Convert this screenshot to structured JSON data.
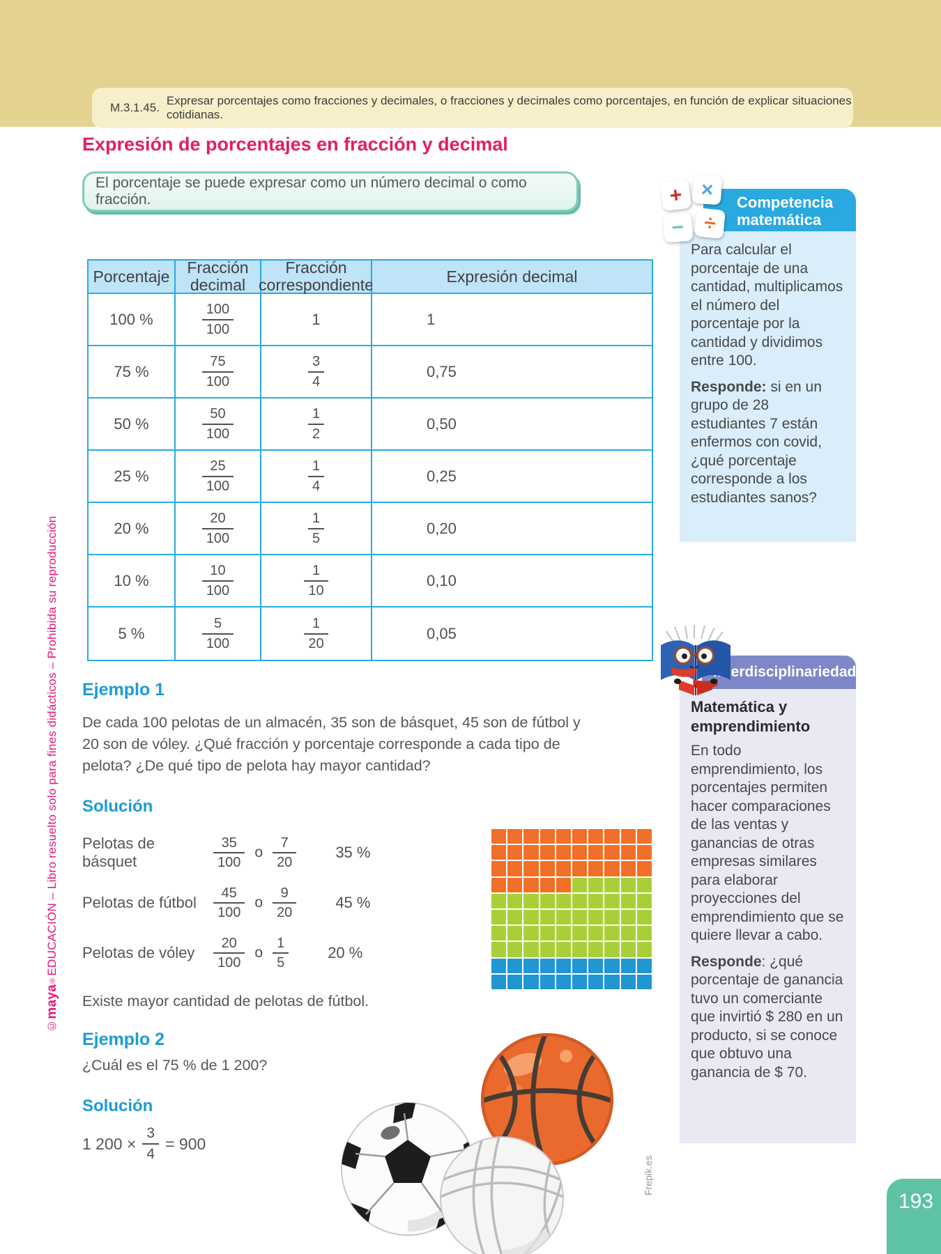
{
  "band": {
    "code": "M.3.1.45.",
    "text": "Expresar porcentajes como fracciones y decimales, o fracciones y decimales como porcentajes, en función de explicar situaciones cotidianas."
  },
  "title": "Expresión de porcentajes en fracción y decimal",
  "definition_box": "El porcentaje se puede expresar como un número decimal o como fracción.",
  "table": {
    "headers": [
      "Porcentaje",
      "Fracción decimal",
      "Fracción correspondiente",
      "Expresión decimal"
    ],
    "rows": [
      {
        "pct": "100 %",
        "fd_num": "100",
        "fd_den": "100",
        "eq": "1",
        "dec": "1"
      },
      {
        "pct": "75 %",
        "fd_num": "75",
        "fd_den": "100",
        "eq_num": "3",
        "eq_den": "4",
        "dec": "0,75"
      },
      {
        "pct": "50 %",
        "fd_num": "50",
        "fd_den": "100",
        "eq_num": "1",
        "eq_den": "2",
        "dec": "0,50"
      },
      {
        "pct": "25 %",
        "fd_num": "25",
        "fd_den": "100",
        "eq_num": "1",
        "eq_den": "4",
        "dec": "0,25"
      },
      {
        "pct": "20 %",
        "fd_num": "20",
        "fd_den": "100",
        "eq_num": "1",
        "eq_den": "5",
        "dec": "0,20"
      },
      {
        "pct": "10 %",
        "fd_num": "10",
        "fd_den": "100",
        "eq_num": "1",
        "eq_den": "10",
        "dec": "0,10"
      },
      {
        "pct": "5 %",
        "fd_num": "5",
        "fd_den": "100",
        "eq_num": "1",
        "eq_den": "20",
        "dec": "0,05"
      }
    ]
  },
  "example1": {
    "heading": "Ejemplo 1",
    "body": "De cada 100 pelotas de un almacén, 35 son de básquet, 45 son de fútbol y 20 son de vóley. ¿Qué fracción y porcentaje corresponde a cada tipo de pelota? ¿De qué tipo de pelota hay mayor cantidad?",
    "solution_label": "Solución",
    "rows": [
      {
        "label": "Pelotas de básquet",
        "f1_num": "35",
        "f1_den": "100",
        "conj": "o",
        "f2_num": "7",
        "f2_den": "20",
        "pct": "35 %"
      },
      {
        "label": "Pelotas de fútbol",
        "f1_num": "45",
        "f1_den": "100",
        "conj": "o",
        "f2_num": "9",
        "f2_den": "20",
        "pct": "45 %"
      },
      {
        "label": "Pelotas de vóley",
        "f1_num": "20",
        "f1_den": "100",
        "conj": "o",
        "f2_num": "1",
        "f2_den": "5",
        "pct": "20 %"
      }
    ],
    "conclusion": "Existe mayor cantidad de pelotas de fútbol."
  },
  "example2": {
    "heading": "Ejemplo 2",
    "question": "¿Cuál es el 75 % de 1 200?",
    "solution_label": "Solución",
    "formula": {
      "lead": "1 200 ×",
      "num": "3",
      "den": "4",
      "tail": "= 900"
    }
  },
  "grid": {
    "columns": 10,
    "segments": [
      {
        "name": "basquet",
        "color": "#f16f26",
        "count": 35
      },
      {
        "name": "futbol",
        "color": "#a9cf38",
        "count": 45
      },
      {
        "name": "voley",
        "color": "#2096d3",
        "count": 20
      }
    ]
  },
  "competencia": {
    "title_line1": "Competencia",
    "title_line2": "matemática",
    "icon_plus": "+",
    "icon_times": "×",
    "icon_minus": "−",
    "icon_divide": "÷",
    "body": "Para calcular el porcentaje de una cantidad, multiplicamos el número del porcentaje por la cantidad y dividimos entre 100.",
    "responde_label": "Responde:",
    "responde_text": " si en un grupo de 28 estudiantes 7 están enfermos con covid, ¿qué porcentaje corresponde a los estudiantes sanos?"
  },
  "interdisciplinariedad": {
    "title": "Interdisciplinariedad",
    "subtitle": "Matemática y emprendimiento",
    "body": "En todo emprendimiento, los porcentajes permiten hacer comparaciones de las ventas y ganancias de otras empresas similares para elaborar proyecciones del emprendimiento que se quiere llevar a cabo.",
    "responde_label": "Responde",
    "responde_text": ": ¿qué porcentaje de ganancia tuvo un comerciante que invirtió $ 280 en un producto, si se conoce que obtuvo una ganancia de $ 70."
  },
  "footer": {
    "page_number": "193",
    "credit": "Frepik.es"
  },
  "sidebar_note": {
    "prefix": "©",
    "brand": "maya",
    "reg": "®",
    "publisher": "EDUCACIÓN",
    "suffix": " – Libro resuelto solo para fines didácticos – Prohibida su reproducción"
  },
  "colors": {
    "band_tan": "#e4d390",
    "band_inner": "#f7efc9",
    "title_pink": "#e31e5f",
    "heading_blue": "#1d9bd5",
    "table_border": "#29abe2",
    "table_header_fill": "#bfe3f7",
    "competencia_header": "#29a9e0",
    "competencia_body": "#d9eefa",
    "inter_header": "#7e88c8",
    "inter_body": "#e9e9f4",
    "grid_orange": "#f16f26",
    "grid_green": "#a9cf38",
    "grid_blue": "#2096d3",
    "page_tab_green": "#5ec3a4",
    "sidebar_pink": "#e8137d"
  }
}
